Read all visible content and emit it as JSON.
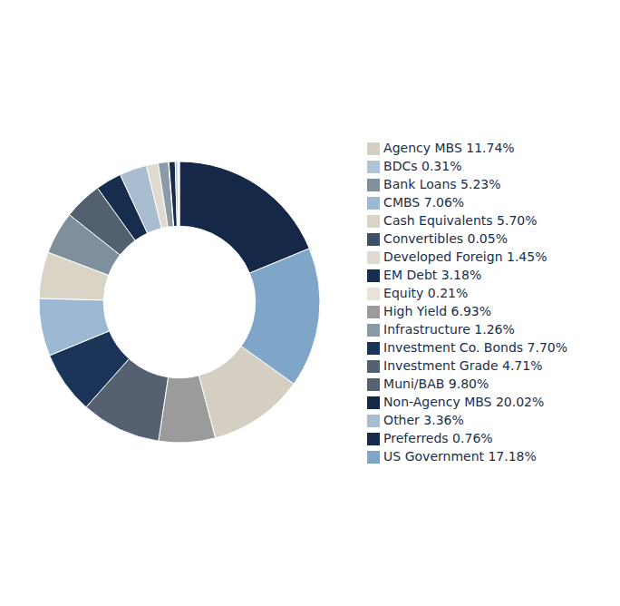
{
  "chart_data": {
    "type": "pie",
    "categories": [
      "Non-Agency MBS 20.02%",
      "US Government 17.18%",
      "Agency MBS 11.74%",
      "High Yield 6.93%",
      "Muni/BAB 9.80%",
      "Investment Co. Bonds 7.70%",
      "CMBS 7.06%",
      "Cash Equivalents 5.70%",
      "Bank Loans 5.23%",
      "Investment Grade 4.71%",
      "EM Debt 3.18%",
      "Other 3.36%",
      "Developed Foreign 1.45%",
      "Infrastructure 1.26%",
      "Convertibles 0.05%",
      "Preferreds 0.76%",
      "BDCs 0.31%",
      "Equity 0.21%"
    ],
    "values": [
      20.02,
      17.18,
      11.74,
      6.93,
      9.8,
      7.7,
      7.06,
      5.7,
      5.23,
      4.71,
      3.18,
      3.36,
      1.45,
      1.26,
      0.05,
      0.76,
      0.31,
      0.21
    ],
    "colors": [
      "#152848",
      "#7fa5c8",
      "#d4cfc2",
      "#9b9b9b",
      "#556070",
      "#1a3558",
      "#9db8d2",
      "#d9d4c5",
      "#808f9c",
      "#526070",
      "#162d4e",
      "#a8bdd0",
      "#e0dbd0",
      "#8a9aa8",
      "#3d5068",
      "#172c4a",
      "#b0c4d8",
      "#e8e3d8"
    ],
    "legend": "right"
  }
}
